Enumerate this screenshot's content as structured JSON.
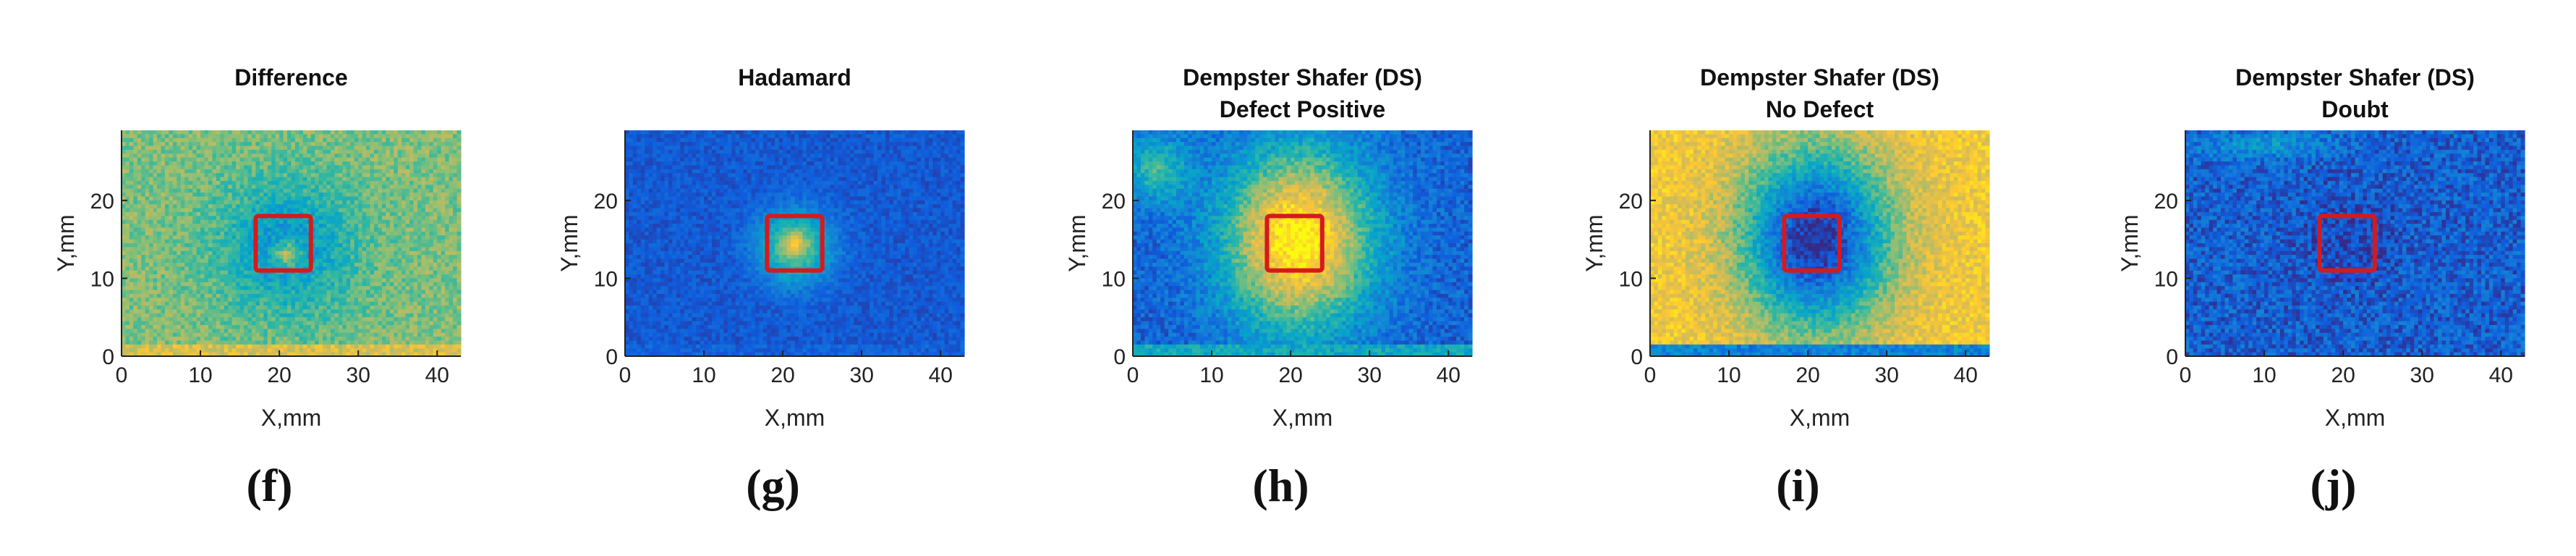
{
  "colors": {
    "marker": "#d7191c",
    "colormap": [
      "#352a87",
      "#0f5cdd",
      "#1481d6",
      "#06a4ca",
      "#2eb7a4",
      "#87bf77",
      "#d1bb59",
      "#fec832",
      "#f9fb0e"
    ]
  },
  "chart_data": [
    {
      "type": "heatmap",
      "panel_label": "(f)",
      "title": [
        "Difference"
      ],
      "xlabel": "X,mm",
      "ylabel": "Y,mm",
      "xlim": [
        0,
        43
      ],
      "ylim": [
        0,
        29
      ],
      "xticks": [
        0,
        10,
        20,
        30,
        40
      ],
      "yticks": [
        0,
        10,
        20
      ],
      "defect_box": {
        "x": [
          17,
          24
        ],
        "y": [
          11,
          18
        ]
      },
      "field": {
        "background": 0.62,
        "spot": {
          "x": 21,
          "y": 14,
          "sx": 6,
          "sy": 6,
          "amp": -0.3
        },
        "extra": [
          {
            "x": 21,
            "y": 13,
            "sx": 1.2,
            "sy": 1.2,
            "amp": 0.35
          }
        ],
        "edge_bottom": 0.78,
        "noise": 0.1
      }
    },
    {
      "type": "heatmap",
      "panel_label": "(g)",
      "title": [
        "Hadamard"
      ],
      "xlabel": "X,mm",
      "ylabel": "Y,mm",
      "xlim": [
        0,
        43
      ],
      "ylim": [
        0,
        29
      ],
      "xticks": [
        0,
        10,
        20,
        30,
        40
      ],
      "yticks": [
        0,
        10,
        20
      ],
      "defect_box": {
        "x": [
          18,
          25
        ],
        "y": [
          11,
          18
        ]
      },
      "field": {
        "background": 0.12,
        "spot": {
          "x": 21.5,
          "y": 14,
          "sx": 3.2,
          "sy": 3.2,
          "amp": 0.5
        },
        "extra": [
          {
            "x": 21.5,
            "y": 14.5,
            "sx": 1.0,
            "sy": 1.0,
            "amp": 0.25
          }
        ],
        "edge_bottom": 0.15,
        "noise": 0.06
      }
    },
    {
      "type": "heatmap",
      "panel_label": "(h)",
      "title": [
        "Dempster Shafer (DS)",
        "Defect Positive"
      ],
      "xlabel": "X,mm",
      "ylabel": "Y,mm",
      "xlim": [
        0,
        43
      ],
      "ylim": [
        0,
        29
      ],
      "xticks": [
        0,
        10,
        20,
        30,
        40
      ],
      "yticks": [
        0,
        10,
        20
      ],
      "defect_box": {
        "x": [
          17,
          24
        ],
        "y": [
          11,
          18
        ]
      },
      "field": {
        "background": 0.15,
        "spot": {
          "x": 21,
          "y": 15,
          "sx": 6.5,
          "sy": 8,
          "amp": 0.85
        },
        "extra": [
          {
            "x": 3,
            "y": 24,
            "sx": 3,
            "sy": 3,
            "amp": 0.35
          }
        ],
        "edge_bottom": 0.4,
        "noise": 0.1
      }
    },
    {
      "type": "heatmap",
      "panel_label": "(i)",
      "title": [
        "Dempster Shafer (DS)",
        "No Defect"
      ],
      "xlabel": "X,mm",
      "ylabel": "Y,mm",
      "xlim": [
        0,
        43
      ],
      "ylim": [
        0,
        29
      ],
      "xticks": [
        0,
        10,
        20,
        30,
        40
      ],
      "yticks": [
        0,
        10,
        20
      ],
      "defect_box": {
        "x": [
          17,
          24
        ],
        "y": [
          11,
          18
        ]
      },
      "field": {
        "background": 0.85,
        "spot": {
          "x": 21,
          "y": 15,
          "sx": 6.5,
          "sy": 8,
          "amp": -0.85
        },
        "extra": [],
        "edge_bottom": 0.25,
        "noise": 0.1
      }
    },
    {
      "type": "heatmap",
      "panel_label": "(j)",
      "title": [
        "Dempster Shafer (DS)",
        "Doubt"
      ],
      "xlabel": "X,mm",
      "ylabel": "Y,mm",
      "xlim": [
        0,
        43
      ],
      "ylim": [
        0,
        29
      ],
      "xticks": [
        0,
        10,
        20,
        30,
        40
      ],
      "yticks": [
        0,
        10,
        20
      ],
      "defect_box": {
        "x": [
          17,
          24
        ],
        "y": [
          11,
          18
        ]
      },
      "field": {
        "background": 0.14,
        "spot": {
          "x": 21,
          "y": 15,
          "sx": 4,
          "sy": 4,
          "amp": -0.08
        },
        "extra": [
          {
            "x": 10,
            "y": 27,
            "sx": 6,
            "sy": 1.2,
            "amp": 0.2
          }
        ],
        "edge_bottom": 0.14,
        "noise": 0.12
      }
    }
  ]
}
